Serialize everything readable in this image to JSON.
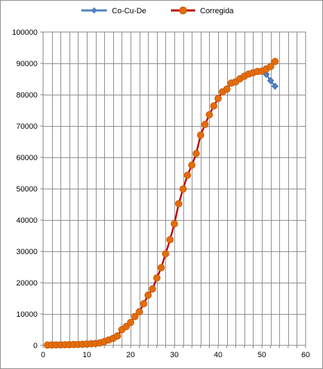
{
  "chart_data": {
    "type": "line",
    "title": "",
    "xlabel": "",
    "ylabel": "",
    "xlim": [
      0,
      60
    ],
    "ylim": [
      0,
      100000
    ],
    "x_ticks": [
      "0",
      "10",
      "20",
      "30",
      "40",
      "50",
      "60"
    ],
    "y_ticks": [
      "0",
      "10000",
      "20000",
      "30000",
      "40000",
      "50000",
      "60000",
      "70000",
      "80000",
      "90000",
      "100000"
    ],
    "grid": true,
    "legend_position": "top",
    "series": [
      {
        "name": "Co-Cu-De",
        "color": "#4f81bd",
        "marker": "diamond",
        "points": [
          [
            50,
            87500
          ],
          [
            51,
            86500
          ],
          [
            52,
            84500
          ],
          [
            53,
            82700
          ]
        ]
      },
      {
        "name": "Corregida",
        "color": "#c00000",
        "marker_color": "#e46c0a",
        "marker": "circle",
        "points": [
          [
            1,
            100
          ],
          [
            2,
            120
          ],
          [
            3,
            140
          ],
          [
            4,
            150
          ],
          [
            5,
            180
          ],
          [
            6,
            200
          ],
          [
            7,
            250
          ],
          [
            8,
            300
          ],
          [
            9,
            350
          ],
          [
            10,
            400
          ],
          [
            11,
            500
          ],
          [
            12,
            600
          ],
          [
            13,
            800
          ],
          [
            14,
            1200
          ],
          [
            15,
            1700
          ],
          [
            16,
            2200
          ],
          [
            17,
            3000
          ],
          [
            18,
            5000
          ],
          [
            19,
            6000
          ],
          [
            20,
            7300
          ],
          [
            21,
            9200
          ],
          [
            22,
            10700
          ],
          [
            23,
            13300
          ],
          [
            24,
            16000
          ],
          [
            25,
            18000
          ],
          [
            26,
            21500
          ],
          [
            27,
            24800
          ],
          [
            28,
            29200
          ],
          [
            29,
            33700
          ],
          [
            30,
            38800
          ],
          [
            31,
            45200
          ],
          [
            32,
            49900
          ],
          [
            33,
            54300
          ],
          [
            34,
            57500
          ],
          [
            35,
            61200
          ],
          [
            36,
            67100
          ],
          [
            37,
            70500
          ],
          [
            38,
            73600
          ],
          [
            39,
            76400
          ],
          [
            40,
            78800
          ],
          [
            41,
            80900
          ],
          [
            42,
            81800
          ],
          [
            43,
            83700
          ],
          [
            44,
            84100
          ],
          [
            45,
            85100
          ],
          [
            46,
            85900
          ],
          [
            47,
            86600
          ],
          [
            48,
            87000
          ],
          [
            49,
            87400
          ],
          [
            50,
            87500
          ],
          [
            51,
            88200
          ],
          [
            52,
            89000
          ],
          [
            53,
            90600
          ]
        ]
      }
    ]
  }
}
